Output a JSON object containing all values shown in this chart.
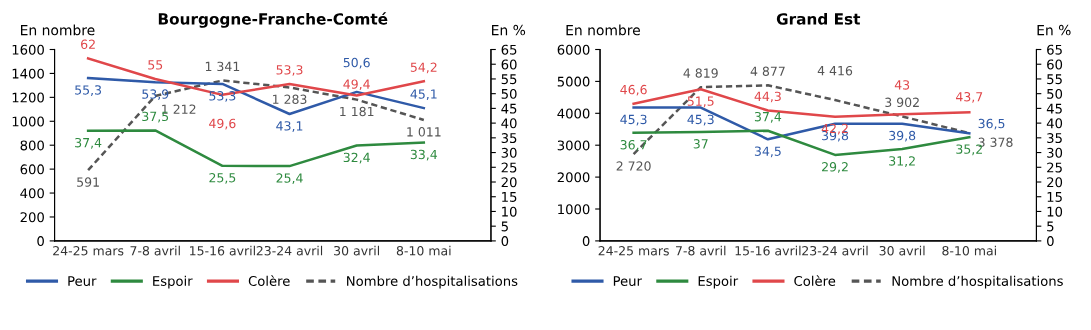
{
  "chart_data": [
    {
      "type": "line",
      "title": "Bourgogne-Franche-Comté",
      "ylabel": "En nombre",
      "y2label": "En %",
      "categories": [
        "24-25 mars",
        "7-8 avril",
        "15-16 avril",
        "23-24 avril",
        "30 avril",
        "8-10 mai"
      ],
      "ylim": [
        0,
        1600
      ],
      "yticks": [
        0,
        200,
        400,
        600,
        800,
        1000,
        1200,
        1400,
        1600
      ],
      "y2lim": [
        0,
        65
      ],
      "y2ticks": [
        0,
        5,
        10,
        15,
        20,
        25,
        30,
        35,
        40,
        45,
        50,
        55,
        60,
        65
      ],
      "legend": "bottom",
      "grid": false,
      "series": [
        {
          "name": "Peur",
          "color": "#2f5aa8",
          "axis": "y2",
          "line_style": "solid",
          "values": [
            55.3,
            53.9,
            53.3,
            43.1,
            50.6,
            45.1
          ],
          "value_labels": [
            "55,3",
            "53,9",
            "53,3",
            "43,1",
            "50,6",
            "45,1"
          ]
        },
        {
          "name": "Espoir",
          "color": "#2e8a3f",
          "axis": "y2",
          "line_style": "solid",
          "values": [
            37.4,
            37.5,
            25.5,
            25.4,
            32.4,
            33.4
          ],
          "value_labels": [
            "37,4",
            "37,5",
            "25,5",
            "25,4",
            "32,4",
            "33,4"
          ]
        },
        {
          "name": "Colère",
          "color": "#e0474a",
          "axis": "y2",
          "line_style": "solid",
          "values": [
            62,
            55,
            49.6,
            53.3,
            49.4,
            54.2
          ],
          "value_labels": [
            "62",
            "55",
            "49,6",
            "53,3",
            "49,4",
            "54,2"
          ]
        },
        {
          "name": "Nombre d’hospitalisations",
          "color": "#555555",
          "axis": "y",
          "line_style": "dashed",
          "values": [
            591,
            1212,
            1341,
            1283,
            1181,
            1011
          ],
          "value_labels": [
            "591",
            "1 212",
            "1 341",
            "1 283",
            "1 181",
            "1 011"
          ]
        }
      ]
    },
    {
      "type": "line",
      "title": "Grand Est",
      "ylabel": "En nombre",
      "y2label": "En %",
      "categories": [
        "24-25 mars",
        "7-8 avril",
        "15-16 avril",
        "23-24 avril",
        "30 avril",
        "8-10 mai"
      ],
      "ylim": [
        0,
        6000
      ],
      "yticks": [
        0,
        1000,
        2000,
        3000,
        4000,
        5000,
        6000
      ],
      "y2lim": [
        0,
        65
      ],
      "y2ticks": [
        0,
        5,
        10,
        15,
        20,
        25,
        30,
        35,
        40,
        45,
        50,
        55,
        60,
        65
      ],
      "legend": "bottom",
      "grid": false,
      "series": [
        {
          "name": "Peur",
          "color": "#2f5aa8",
          "axis": "y2",
          "line_style": "solid",
          "values": [
            45.3,
            45.3,
            34.5,
            39.8,
            39.8,
            36.5
          ],
          "value_labels": [
            "45,3",
            "45,3",
            "34,5",
            "39,8",
            "39,8",
            "36,5"
          ]
        },
        {
          "name": "Espoir",
          "color": "#2e8a3f",
          "axis": "y2",
          "line_style": "solid",
          "values": [
            36.7,
            37,
            37.4,
            29.2,
            31.2,
            35.2
          ],
          "value_labels": [
            "36,7",
            "37",
            "37,4",
            "29,2",
            "31,2",
            "35,2"
          ]
        },
        {
          "name": "Colère",
          "color": "#e0474a",
          "axis": "y2",
          "line_style": "solid",
          "values": [
            46.6,
            51.5,
            44.3,
            42.2,
            43,
            43.7
          ],
          "value_labels": [
            "46,6",
            "51,5",
            "44,3",
            "42,2",
            "43",
            "43,7"
          ]
        },
        {
          "name": "Nombre d’hospitalisations",
          "color": "#555555",
          "axis": "y",
          "line_style": "dashed",
          "values": [
            2720,
            4819,
            4877,
            4416,
            3902,
            3378
          ],
          "value_labels": [
            "2 720",
            "4 819",
            "4 877",
            "4 416",
            "3 902",
            "3 378"
          ]
        }
      ]
    }
  ]
}
